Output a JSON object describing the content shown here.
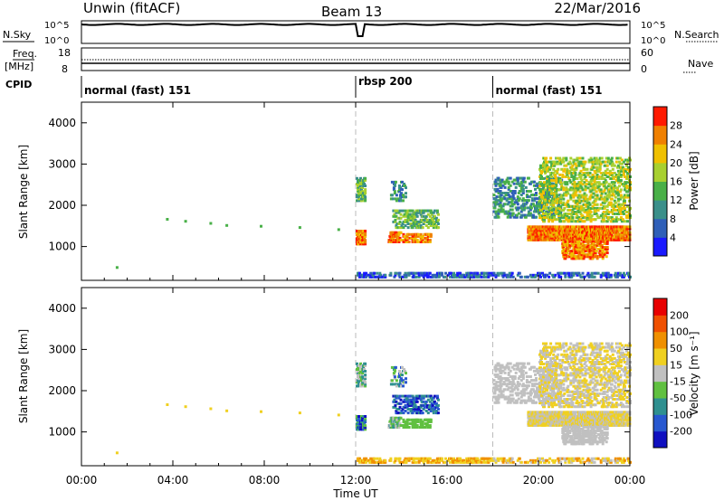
{
  "header": {
    "station": "Unwin (fitACF)",
    "beam": "Beam 13",
    "date": "22/Mar/2016"
  },
  "noise_panel": {
    "left_label": "N.Sky",
    "right_label": "N.Search",
    "ticks": [
      "10^5",
      "10^0"
    ]
  },
  "freq_panel": {
    "left_label_1": "Freq.",
    "left_label_2": "[MHz]",
    "left_ticks": [
      "18",
      "8"
    ],
    "right_label": "Nave",
    "right_ticks": [
      "60",
      "0"
    ]
  },
  "cpid_panel": {
    "label": "CPID",
    "segments": [
      {
        "start_hour": 0,
        "label": "normal (fast) 151"
      },
      {
        "start_hour": 12,
        "label": "rbsp 200"
      },
      {
        "start_hour": 18,
        "label": "normal (fast) 151"
      }
    ]
  },
  "chart_data": [
    {
      "type": "heatmap",
      "name": "power",
      "ylabel": "Slant Range [km]",
      "ylim": [
        180,
        4500
      ],
      "yticks": [
        "1000",
        "2000",
        "3000",
        "4000"
      ],
      "colorbar_label": "Power [dB]",
      "colorbar_ticks": [
        "4",
        "8",
        "12",
        "16",
        "20",
        "24",
        "28"
      ],
      "colorbar_range": [
        0,
        32
      ]
    },
    {
      "type": "heatmap",
      "name": "velocity",
      "ylabel": "Slant Range [km]",
      "ylim": [
        180,
        4500
      ],
      "yticks": [
        "1000",
        "2000",
        "3000",
        "4000"
      ],
      "colorbar_label": "Velocity [m s⁻¹]",
      "colorbar_ticks": [
        "200",
        "100",
        "50",
        "15",
        "-15",
        "-50",
        "-100",
        "-200"
      ]
    }
  ],
  "time_axis": {
    "label": "Time UT",
    "ticks": [
      "00:00",
      "04:00",
      "08:00",
      "12:00",
      "16:00",
      "20:00",
      "00:00"
    ],
    "range_hours": [
      0,
      24
    ]
  },
  "colors": {
    "power_scale": [
      "#1a1aff",
      "#2f5fb8",
      "#3a8f8a",
      "#49b048",
      "#a8d030",
      "#f0c000",
      "#f08000",
      "#ff1a00"
    ],
    "velocity_scale": [
      "#1010c0",
      "#2858d0",
      "#2f9090",
      "#60c040",
      "#c0c0c0",
      "#f0d020",
      "#f09000",
      "#f05000",
      "#e80000"
    ]
  }
}
